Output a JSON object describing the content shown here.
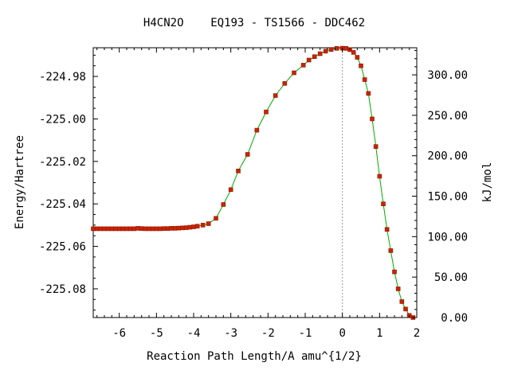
{
  "chart_data": {
    "type": "line",
    "title": "H4CN2O    EQ193 - TS1566 - DDC462",
    "xlabel": "Reaction Path Length/A amu^{1/2}",
    "ylabel": "Energy/Hartree",
    "y2label": "kJ/mol",
    "xlim": [
      -6.7,
      2.0
    ],
    "ylim": [
      -225.0935,
      -224.9665
    ],
    "y2lim": [
      0.0,
      333.5
    ],
    "xticks": [
      "-6",
      "-5",
      "-4",
      "-3",
      "-2",
      "-1",
      "0",
      "1",
      "2"
    ],
    "yticks": [
      "-224.98",
      "-225.00",
      "-225.02",
      "-225.04",
      "-225.06",
      "-225.08"
    ],
    "y2ticks": [
      "0.00",
      "50.00",
      "100.00",
      "150.00",
      "200.00",
      "250.00",
      "300.00"
    ],
    "ts_x": 0.0,
    "colors": {
      "line": "#00aa00",
      "marker": "#cc2200",
      "marker_edge": "#8b1a00",
      "ts_line": "#999999"
    },
    "series": [
      {
        "x": [
          -6.7,
          -6.6,
          -6.5,
          -6.4,
          -6.3,
          -6.2,
          -6.1,
          -6.0,
          -5.9,
          -5.8,
          -5.7,
          -5.6,
          -5.5,
          -5.4,
          -5.3,
          -5.2,
          -5.1,
          -5.0,
          -4.9,
          -4.8,
          -4.7,
          -4.6,
          -4.5,
          -4.4,
          -4.3,
          -4.2,
          -4.1,
          -4.0,
          -3.9,
          -3.75,
          -3.6,
          -3.4,
          -3.2,
          -3.0,
          -2.8,
          -2.55,
          -2.3,
          -2.05,
          -1.8,
          -1.55,
          -1.3,
          -1.05,
          -0.9,
          -0.75,
          -0.6,
          -0.45,
          -0.3,
          -0.15,
          0.0,
          0.1,
          0.2,
          0.3,
          0.4,
          0.5,
          0.6,
          0.7,
          0.8,
          0.9,
          1.0,
          1.1,
          1.2,
          1.3,
          1.4,
          1.5,
          1.6,
          1.7,
          1.8,
          1.9
        ],
        "y": [
          -225.0517,
          -225.0517,
          -225.0517,
          -225.0517,
          -225.0517,
          -225.0517,
          -225.0517,
          -225.0517,
          -225.0517,
          -225.0517,
          -225.0517,
          -225.0517,
          -225.0515,
          -225.0516,
          -225.0517,
          -225.0517,
          -225.0517,
          -225.0517,
          -225.0517,
          -225.0516,
          -225.0516,
          -225.0515,
          -225.0515,
          -225.0514,
          -225.0513,
          -225.0512,
          -225.051,
          -225.0508,
          -225.0505,
          -225.05,
          -225.0493,
          -225.0468,
          -225.0403,
          -225.0333,
          -225.0245,
          -225.0167,
          -225.0053,
          -224.9967,
          -224.989,
          -224.9833,
          -224.9783,
          -224.9747,
          -224.9723,
          -224.9707,
          -224.9693,
          -224.9681,
          -224.9673,
          -224.9668,
          -224.9667,
          -224.9668,
          -224.9674,
          -224.9687,
          -224.971,
          -224.975,
          -224.9815,
          -224.988,
          -225.0,
          -225.013,
          -225.027,
          -225.04,
          -225.052,
          -225.062,
          -225.072,
          -225.08,
          -225.086,
          -225.0895,
          -225.0925,
          -225.0935
        ]
      }
    ]
  }
}
